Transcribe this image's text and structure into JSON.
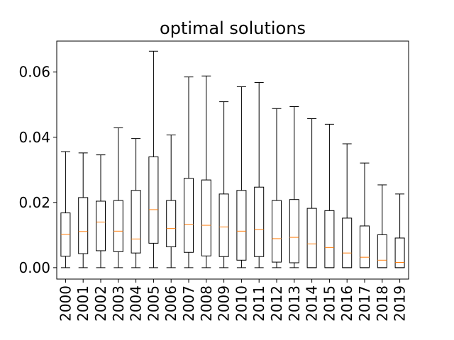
{
  "chart_data": {
    "type": "box",
    "title": "optimal solutions",
    "xlabel": "",
    "ylabel": "",
    "ylim": [
      -0.0035,
      0.0695
    ],
    "yticks": [
      0.0,
      0.02,
      0.04,
      0.06
    ],
    "ytick_labels": [
      "0.00",
      "0.02",
      "0.04",
      "0.06"
    ],
    "grid": false,
    "legend": "none",
    "colors": {
      "box": "#000000",
      "whisker": "#000000",
      "median": "#ff7f0e"
    },
    "categories": [
      "2000",
      "2001",
      "2002",
      "2003",
      "2004",
      "2005",
      "2006",
      "2007",
      "2008",
      "2009",
      "2010",
      "2011",
      "2012",
      "2013",
      "2014",
      "2015",
      "2016",
      "2017",
      "2018",
      "2019"
    ],
    "boxes": [
      {
        "whislo": 0.0,
        "q1": 0.0035,
        "med": 0.0102,
        "q3": 0.0168,
        "whishi": 0.0356
      },
      {
        "whislo": 0.0,
        "q1": 0.0043,
        "med": 0.0111,
        "q3": 0.0215,
        "whishi": 0.0352
      },
      {
        "whislo": 0.0,
        "q1": 0.0052,
        "med": 0.014,
        "q3": 0.0204,
        "whishi": 0.0346
      },
      {
        "whislo": 0.0,
        "q1": 0.0049,
        "med": 0.0112,
        "q3": 0.0206,
        "whishi": 0.0429
      },
      {
        "whislo": 0.0,
        "q1": 0.0045,
        "med": 0.0088,
        "q3": 0.0237,
        "whishi": 0.0396
      },
      {
        "whislo": 0.0,
        "q1": 0.0075,
        "med": 0.0178,
        "q3": 0.034,
        "whishi": 0.0664
      },
      {
        "whislo": 0.0,
        "q1": 0.0064,
        "med": 0.012,
        "q3": 0.0206,
        "whishi": 0.0407
      },
      {
        "whislo": 0.0,
        "q1": 0.0047,
        "med": 0.0133,
        "q3": 0.0274,
        "whishi": 0.0585
      },
      {
        "whislo": 0.0,
        "q1": 0.0036,
        "med": 0.013,
        "q3": 0.0269,
        "whishi": 0.0588
      },
      {
        "whislo": 0.0,
        "q1": 0.0034,
        "med": 0.0125,
        "q3": 0.0226,
        "whishi": 0.0509
      },
      {
        "whislo": 0.0,
        "q1": 0.0023,
        "med": 0.0112,
        "q3": 0.0237,
        "whishi": 0.0555
      },
      {
        "whislo": 0.0,
        "q1": 0.0034,
        "med": 0.0117,
        "q3": 0.0247,
        "whishi": 0.0568
      },
      {
        "whislo": 0.0,
        "q1": 0.0017,
        "med": 0.0089,
        "q3": 0.0206,
        "whishi": 0.0488
      },
      {
        "whislo": 0.0,
        "q1": 0.0015,
        "med": 0.0093,
        "q3": 0.0209,
        "whishi": 0.0494
      },
      {
        "whislo": 0.0,
        "q1": 0.0,
        "med": 0.0073,
        "q3": 0.0182,
        "whishi": 0.0457
      },
      {
        "whislo": 0.0,
        "q1": 0.0,
        "med": 0.0062,
        "q3": 0.0175,
        "whishi": 0.044
      },
      {
        "whislo": 0.0,
        "q1": 0.0,
        "med": 0.0045,
        "q3": 0.0152,
        "whishi": 0.038
      },
      {
        "whislo": 0.0,
        "q1": 0.0,
        "med": 0.0032,
        "q3": 0.0128,
        "whishi": 0.0321
      },
      {
        "whislo": 0.0,
        "q1": 0.0,
        "med": 0.0023,
        "q3": 0.0101,
        "whishi": 0.0254
      },
      {
        "whislo": 0.0,
        "q1": 0.0,
        "med": 0.0016,
        "q3": 0.0091,
        "whishi": 0.0226
      }
    ]
  }
}
